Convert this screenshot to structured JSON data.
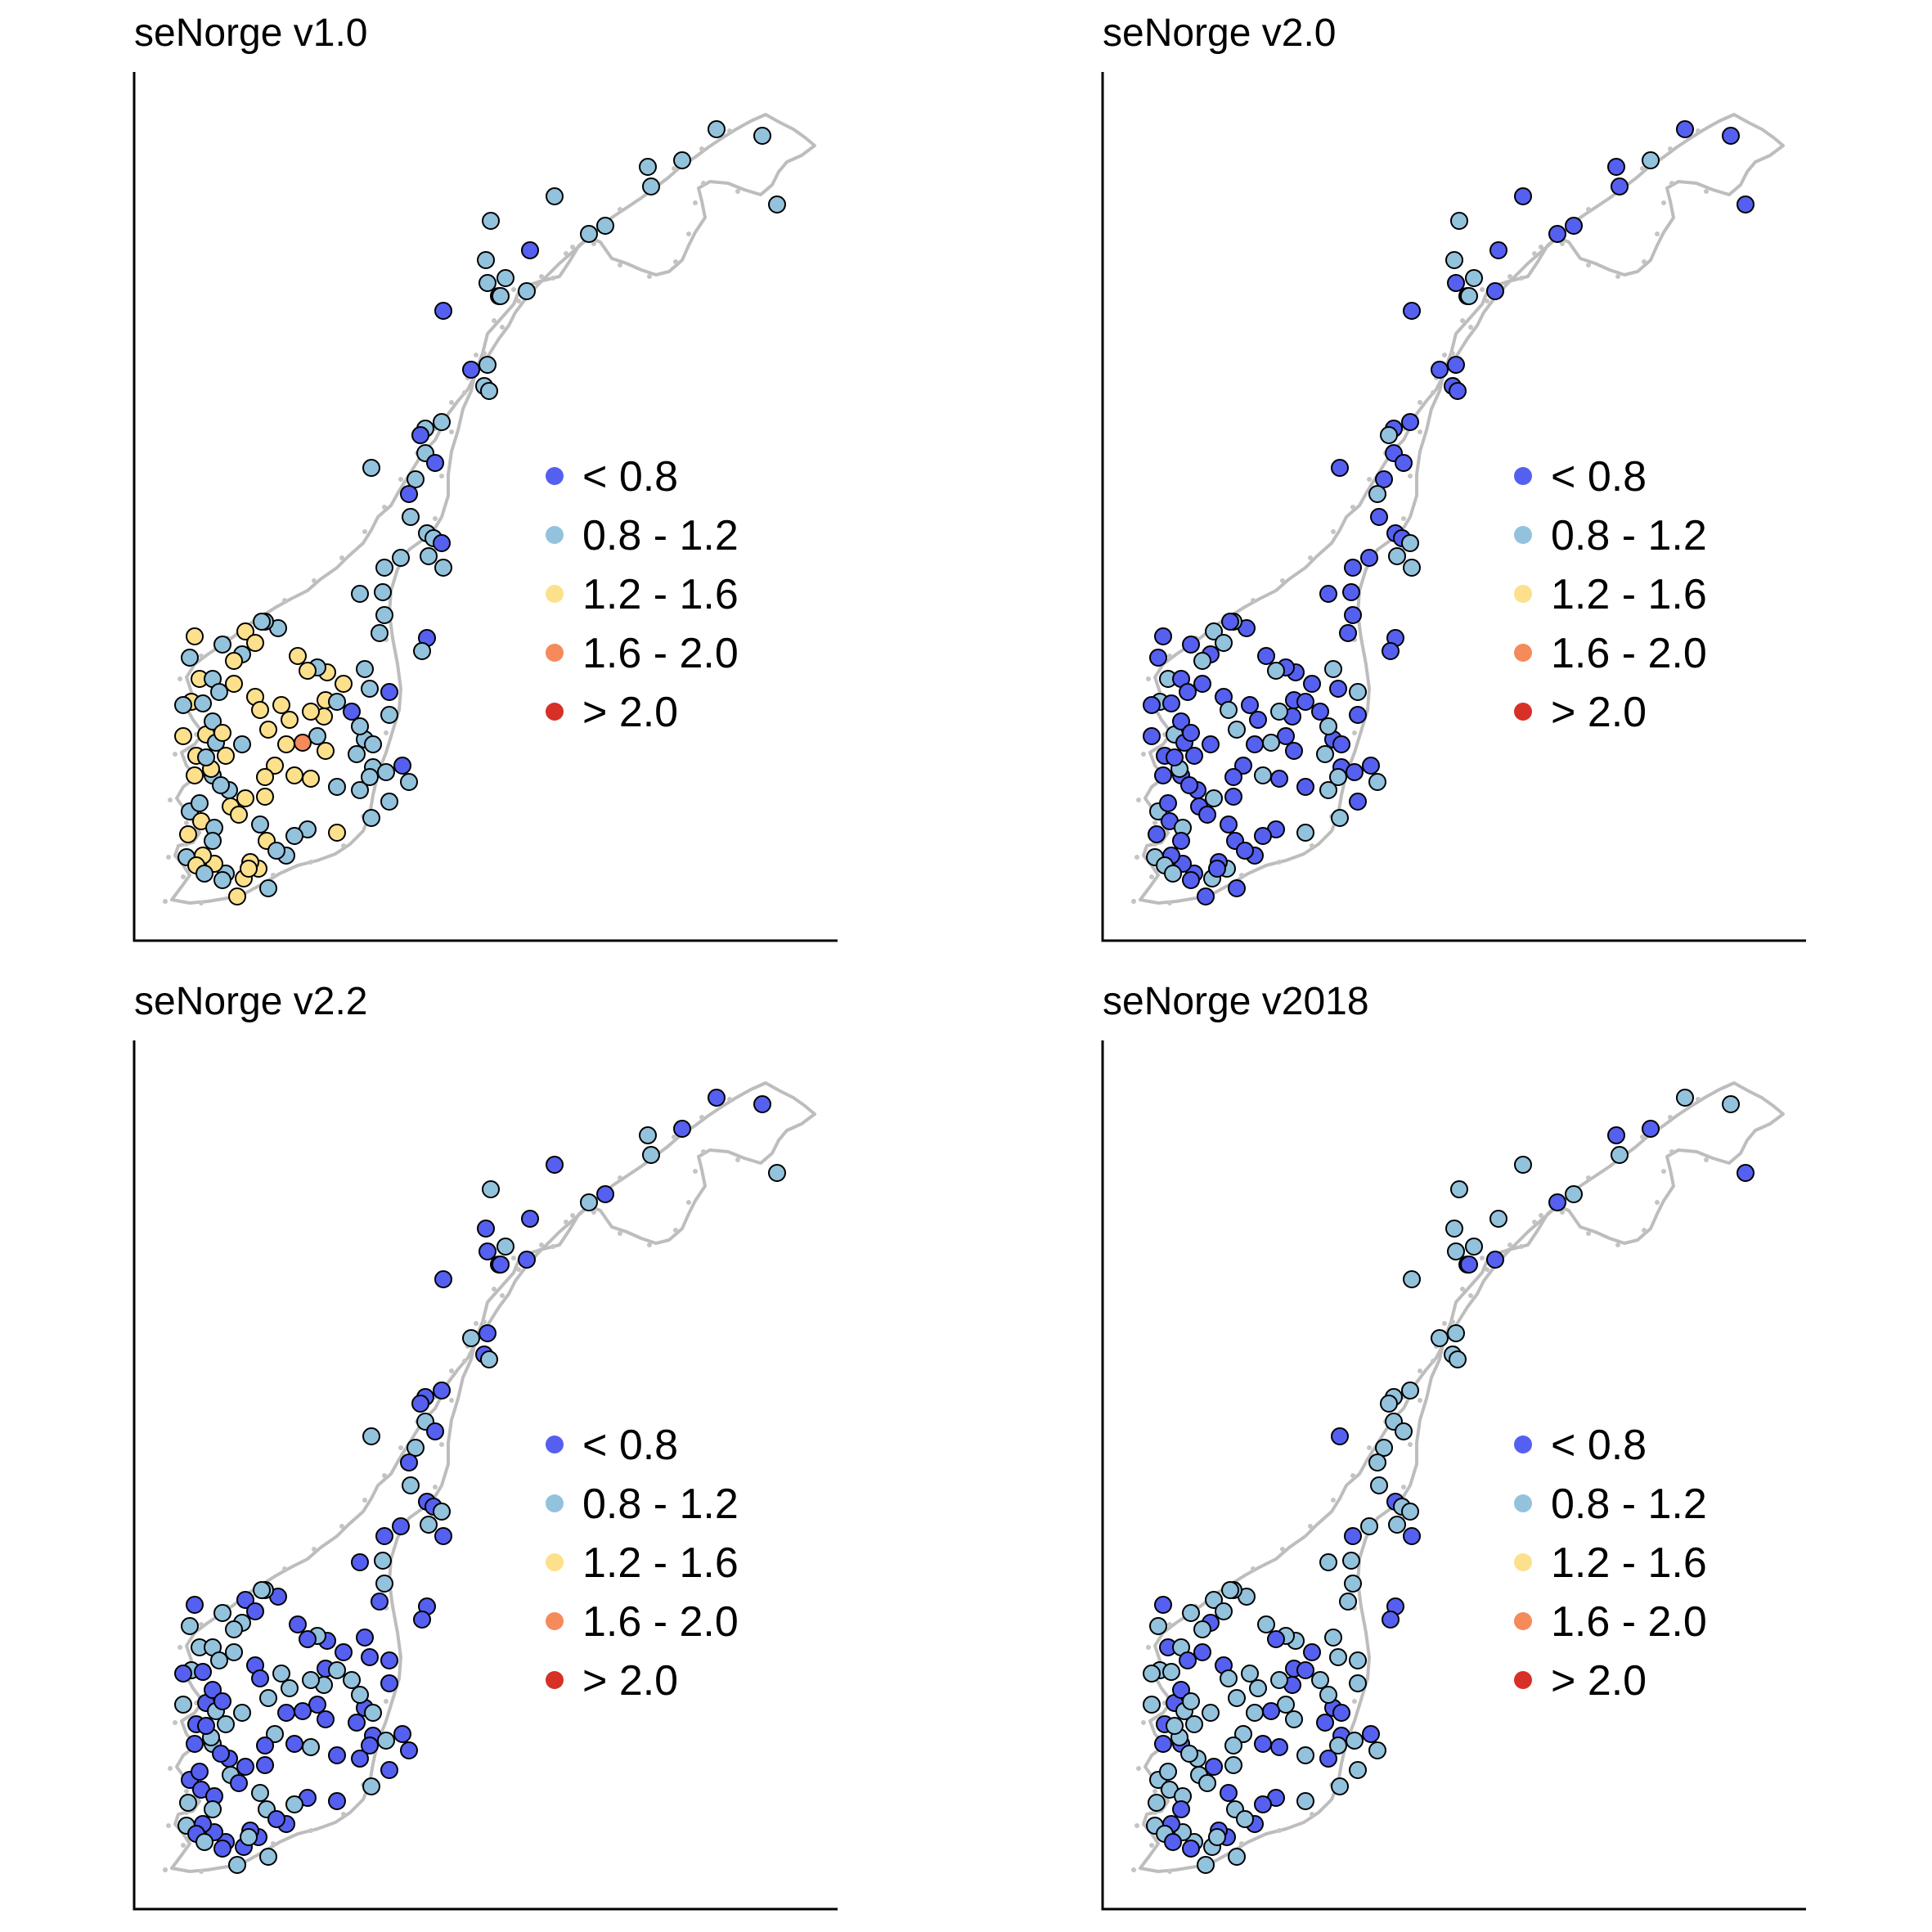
{
  "figure": {
    "panels": [
      {
        "title": "seNorge v1.0"
      },
      {
        "title": "seNorge v2.0"
      },
      {
        "title": "seNorge v2.2"
      },
      {
        "title": "seNorge v2018"
      }
    ]
  },
  "legend": {
    "classes": [
      {
        "label": "< 0.8",
        "color": "#5560f0"
      },
      {
        "label": "0.8 - 1.2",
        "color": "#93c2dc"
      },
      {
        "label": "1.2 - 1.6",
        "color": "#fde08c"
      },
      {
        "label": "1.6 - 2.0",
        "color": "#f58a5a"
      },
      {
        "label": "> 2.0",
        "color": "#d73027"
      }
    ]
  }
}
